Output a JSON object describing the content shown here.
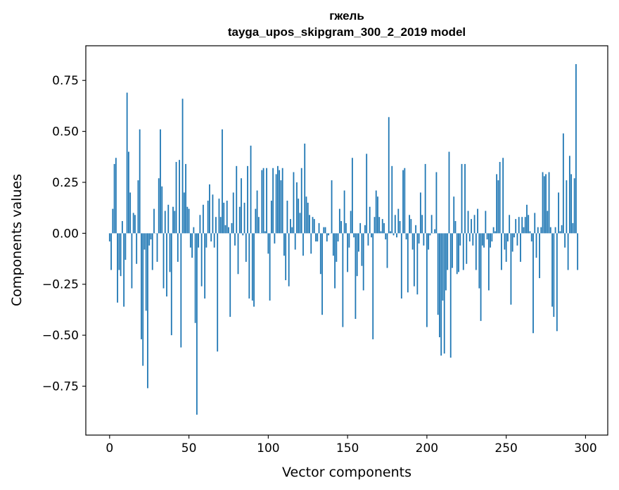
{
  "chart_data": {
    "type": "bar",
    "title": "гжель",
    "subtitle": "tayga_upos_skipgram_300_2_2019 model",
    "xlabel": "Vector components",
    "ylabel": "Components values",
    "xlim": [
      -15,
      314
    ],
    "ylim": [
      -0.99,
      0.92
    ],
    "xticks": [
      0,
      50,
      100,
      150,
      200,
      250,
      300
    ],
    "xtick_labels": [
      "0",
      "50",
      "100",
      "150",
      "200",
      "250",
      "300"
    ],
    "yticks": [
      -0.75,
      -0.5,
      -0.25,
      0.0,
      0.25,
      0.5,
      0.75
    ],
    "ytick_labels": [
      "−0.75",
      "−0.50",
      "−0.25",
      "0.00",
      "0.25",
      "0.50",
      "0.75"
    ],
    "bar_color": "#1f77b4",
    "x_start": 0,
    "values": [
      -0.04,
      -0.18,
      0.12,
      0.34,
      0.37,
      -0.34,
      -0.18,
      -0.21,
      0.06,
      -0.36,
      -0.13,
      0.69,
      0.4,
      0.2,
      -0.27,
      0.1,
      0.09,
      -0.15,
      0.26,
      0.51,
      -0.52,
      -0.65,
      -0.08,
      -0.38,
      -0.76,
      -0.06,
      -0.03,
      -0.18,
      0.12,
      0.0,
      -0.14,
      0.27,
      0.51,
      0.23,
      -0.27,
      0.11,
      -0.31,
      0.14,
      -0.19,
      -0.5,
      0.13,
      0.11,
      0.35,
      -0.14,
      0.36,
      -0.56,
      0.66,
      0.2,
      0.34,
      0.13,
      0.12,
      -0.07,
      -0.12,
      0.03,
      -0.44,
      -0.89,
      -0.07,
      0.09,
      -0.26,
      0.14,
      -0.32,
      -0.07,
      0.16,
      0.24,
      -0.04,
      0.19,
      -0.07,
      0.08,
      -0.58,
      0.17,
      0.08,
      0.51,
      0.15,
      0.04,
      0.16,
      0.03,
      -0.41,
      0.05,
      0.2,
      -0.06,
      0.33,
      -0.2,
      0.13,
      0.27,
      -0.01,
      0.15,
      -0.14,
      0.33,
      -0.32,
      0.43,
      -0.33,
      -0.36,
      0.12,
      0.21,
      0.08,
      0.0,
      0.31,
      0.32,
      0.01,
      0.32,
      -0.1,
      -0.33,
      0.16,
      0.32,
      -0.05,
      0.29,
      0.33,
      0.31,
      0.26,
      0.32,
      -0.11,
      -0.23,
      0.16,
      -0.26,
      0.07,
      0.03,
      0.3,
      -0.08,
      0.25,
      0.17,
      0.1,
      0.32,
      -0.11,
      0.44,
      0.18,
      0.15,
      0.09,
      -0.1,
      0.08,
      0.07,
      -0.04,
      -0.04,
      0.05,
      -0.2,
      -0.4,
      0.03,
      0.03,
      -0.04,
      -0.01,
      0.0,
      0.26,
      -0.11,
      -0.27,
      -0.14,
      -0.04,
      0.12,
      0.06,
      -0.46,
      0.21,
      0.05,
      -0.19,
      -0.07,
      0.11,
      0.37,
      -0.02,
      -0.42,
      -0.21,
      -0.09,
      0.05,
      -0.16,
      -0.28,
      0.04,
      0.39,
      -0.06,
      0.13,
      -0.02,
      -0.52,
      0.08,
      0.21,
      0.18,
      0.08,
      0.01,
      0.07,
      0.05,
      -0.03,
      -0.17,
      0.57,
      0.01,
      0.33,
      -0.01,
      0.09,
      -0.02,
      0.12,
      0.06,
      -0.32,
      0.31,
      0.32,
      -0.03,
      -0.29,
      0.09,
      0.07,
      -0.08,
      -0.26,
      0.04,
      -0.3,
      -0.05,
      0.2,
      0.09,
      -0.06,
      0.34,
      -0.46,
      -0.08,
      -0.01,
      0.09,
      0.0,
      0.02,
      0.3,
      -0.4,
      -0.51,
      -0.6,
      -0.33,
      -0.59,
      -0.28,
      -0.18,
      0.4,
      -0.61,
      -0.17,
      0.18,
      0.06,
      -0.2,
      -0.19,
      -0.06,
      0.34,
      -0.18,
      0.34,
      -0.15,
      0.11,
      -0.04,
      0.07,
      -0.06,
      0.09,
      -0.18,
      0.12,
      -0.27,
      -0.43,
      -0.06,
      -0.07,
      0.11,
      -0.03,
      -0.28,
      -0.07,
      -0.04,
      0.03,
      0.01,
      0.29,
      0.26,
      0.35,
      -0.18,
      0.37,
      -0.08,
      -0.14,
      -0.04,
      0.09,
      -0.35,
      -0.09,
      -0.02,
      0.07,
      -0.06,
      0.08,
      -0.14,
      0.08,
      0.03,
      0.08,
      0.14,
      0.09,
      0.01,
      -0.04,
      -0.49,
      0.1,
      -0.12,
      0.03,
      -0.22,
      0.03,
      0.3,
      0.28,
      0.29,
      0.11,
      0.3,
      0.03,
      -0.36,
      -0.41,
      0.03,
      -0.48,
      0.2,
      0.01,
      0.04,
      0.49,
      -0.07,
      0.26,
      -0.18,
      0.38,
      0.29,
      0.05,
      0.27,
      0.83,
      -0.18
    ]
  }
}
